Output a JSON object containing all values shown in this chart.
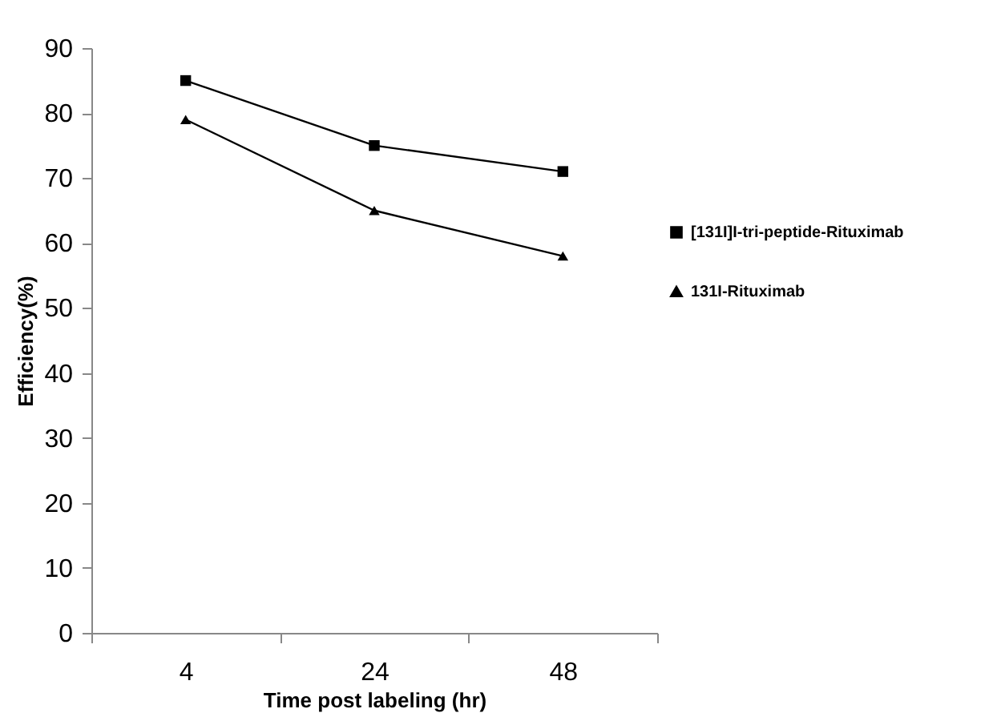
{
  "chart_data": {
    "type": "line",
    "xlabel": "Time post labeling (hr)",
    "ylabel": "Efficiency(%)",
    "categories": [
      "4",
      "24",
      "48"
    ],
    "series": [
      {
        "name": "[131I]I-tri-peptide-Rituximab",
        "color": "#000000",
        "marker": "square",
        "values": [
          85,
          75,
          71
        ]
      },
      {
        "name": "131I-Rituximab",
        "color": "#000000",
        "marker": "triangle",
        "values": [
          79,
          65,
          58
        ]
      }
    ],
    "ylim": [
      0,
      90
    ],
    "yticks": [
      0,
      10,
      20,
      30,
      40,
      50,
      60,
      70,
      80,
      90
    ],
    "grid": false,
    "legend": "right",
    "line_style": "solid"
  }
}
